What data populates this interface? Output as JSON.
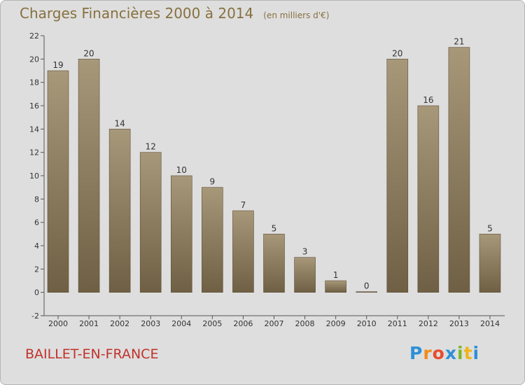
{
  "title": "Charges Financières 2000 à 2014",
  "subtitle": "(en milliers d'€)",
  "commune": "BAILLET-EN-FRANCE",
  "logo": {
    "letters": [
      "P",
      "r",
      "o",
      "x",
      "i",
      "t",
      "i"
    ],
    "colors": [
      "#2e8fd6",
      "#f08c1c",
      "#e74c2f",
      "#2e8fd6",
      "#7ab829",
      "#f0b41c",
      "#2e8fd6"
    ]
  },
  "colors": {
    "bar": "#8c7a5b",
    "title": "#87703f",
    "commune": "#c0322b"
  },
  "chart_data": {
    "type": "bar",
    "categories": [
      "2000",
      "2001",
      "2002",
      "2003",
      "2004",
      "2005",
      "2006",
      "2007",
      "2008",
      "2009",
      "2010",
      "2011",
      "2012",
      "2013",
      "2014"
    ],
    "values": [
      19,
      20,
      14,
      12,
      10,
      9,
      7,
      5,
      3,
      1,
      0,
      20,
      16,
      21,
      5
    ],
    "ylim": [
      -2,
      22
    ],
    "yticks": [
      -2,
      0,
      2,
      4,
      6,
      8,
      10,
      12,
      14,
      16,
      18,
      20,
      22
    ],
    "grid": false
  }
}
